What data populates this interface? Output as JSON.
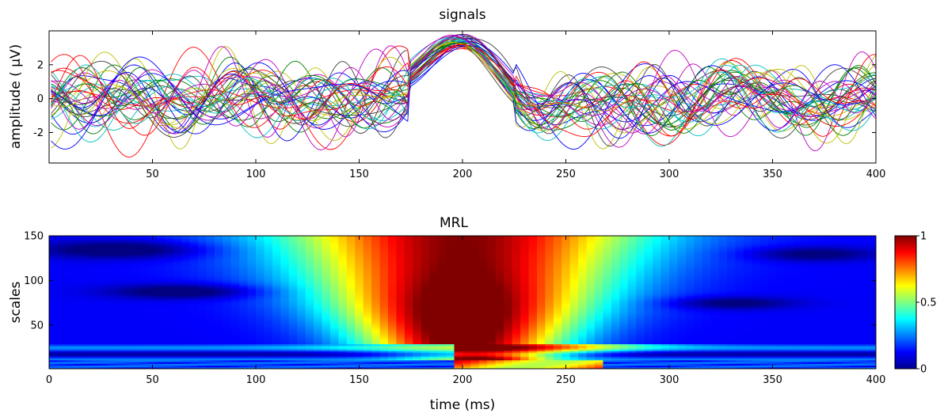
{
  "chart_data": [
    {
      "type": "line",
      "title": "signals",
      "xlabel": "",
      "ylabel": "amplitude ( μV)",
      "xlim": [
        0,
        400
      ],
      "ylim": [
        -3.8,
        4.0
      ],
      "x_ticks": [
        "50",
        "100",
        "150",
        "200",
        "250",
        "300",
        "350",
        "400"
      ],
      "y_ticks": [
        "2",
        "0",
        "-2"
      ],
      "grid": false,
      "n_series": 40,
      "series_colors": [
        "#0000ff",
        "#008000",
        "#ff0000",
        "#00bfbf",
        "#bf00bf",
        "#bfbf00",
        "#404040"
      ],
      "event": {
        "onset_ms": 175,
        "peak_ms": 200,
        "peak_amplitude": 3.6,
        "trough_ms": 240,
        "trough_amplitude": -1.2
      }
    },
    {
      "type": "heatmap",
      "title": "MRL",
      "xlabel": "time (ms)",
      "ylabel": "scales",
      "xlim": [
        0,
        400
      ],
      "ylim": [
        1,
        150
      ],
      "x_ticks": [
        "0",
        "50",
        "100",
        "150",
        "200",
        "250",
        "300",
        "350",
        "400"
      ],
      "y_ticks": [
        "150",
        "100",
        "50"
      ],
      "colormap": "jet",
      "colorbar": {
        "range": [
          0,
          1
        ],
        "ticks": [
          "1",
          "0.5",
          "0"
        ]
      },
      "peak": {
        "time_ms": 200,
        "scale": 60,
        "value": 1.0
      },
      "grid": false
    }
  ]
}
